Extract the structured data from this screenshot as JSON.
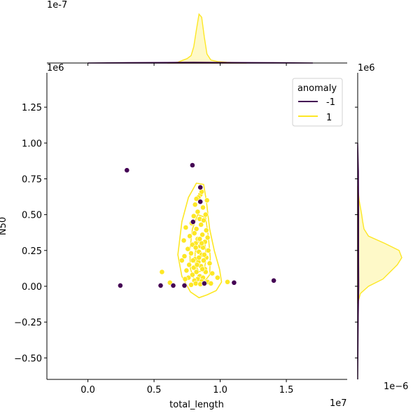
{
  "chart_data": {
    "type": "scatter",
    "title": "",
    "xlabel": "total_length",
    "ylabel": "N50",
    "x_offset_text": "1e7",
    "y_offset_text": "1e6",
    "top_marginal_offset_text": "1e-7",
    "right_marginal_offset_text": "1e6",
    "right_marginal_x_offset_text": "1e−6",
    "xlim": [
      -3.1,
      19.6
    ],
    "ylim": [
      -0.65,
      1.49
    ],
    "xticks": [
      0.0,
      0.5,
      1.0,
      1.5
    ],
    "xtick_labels": [
      "0.0",
      "0.5",
      "1.0",
      "1.5"
    ],
    "yticks": [
      -0.5,
      -0.25,
      0.0,
      0.25,
      0.5,
      0.75,
      1.0,
      1.25
    ],
    "ytick_labels": [
      "−0.50",
      "−0.25",
      "0.00",
      "0.25",
      "0.50",
      "0.75",
      "1.00",
      "1.25"
    ],
    "grid": false,
    "legend": {
      "title": "anomaly",
      "placement": "top-right",
      "entries": [
        {
          "label": "-1",
          "color": "#440154"
        },
        {
          "label": "1",
          "color": "#fde725"
        }
      ]
    },
    "series": [
      {
        "name": "-1",
        "color": "#440154",
        "points": [
          [
            2.95,
            0.81
          ],
          [
            7.9,
            0.845
          ],
          [
            8.5,
            0.69
          ],
          [
            8.5,
            0.59
          ],
          [
            7.95,
            0.45
          ],
          [
            2.45,
            0.005
          ],
          [
            5.5,
            0.005
          ],
          [
            6.45,
            0.005
          ],
          [
            7.3,
            0.005
          ],
          [
            8.8,
            0.02
          ],
          [
            11.05,
            0.025
          ],
          [
            14.05,
            0.04
          ]
        ]
      },
      {
        "name": "1",
        "color": "#fde725",
        "points": [
          [
            8.5,
            0.64
          ],
          [
            8.35,
            0.62
          ],
          [
            8.2,
            0.61
          ],
          [
            8.6,
            0.66
          ],
          [
            8.1,
            0.57
          ],
          [
            9.0,
            0.6
          ],
          [
            8.7,
            0.55
          ],
          [
            8.3,
            0.52
          ],
          [
            8.9,
            0.5
          ],
          [
            8.0,
            0.49
          ],
          [
            8.45,
            0.47
          ],
          [
            8.75,
            0.46
          ],
          [
            7.85,
            0.44
          ],
          [
            8.55,
            0.43
          ],
          [
            7.4,
            0.41
          ],
          [
            8.2,
            0.4
          ],
          [
            8.95,
            0.39
          ],
          [
            8.05,
            0.37
          ],
          [
            8.65,
            0.36
          ],
          [
            7.7,
            0.35
          ],
          [
            9.05,
            0.34
          ],
          [
            8.3,
            0.33
          ],
          [
            7.25,
            0.32
          ],
          [
            8.85,
            0.31
          ],
          [
            8.15,
            0.3
          ],
          [
            7.9,
            0.29
          ],
          [
            8.5,
            0.28
          ],
          [
            8.7,
            0.27
          ],
          [
            7.55,
            0.26
          ],
          [
            9.1,
            0.25
          ],
          [
            8.25,
            0.25
          ],
          [
            8.4,
            0.24
          ],
          [
            7.8,
            0.23
          ],
          [
            8.6,
            0.22
          ],
          [
            7.3,
            0.21
          ],
          [
            8.95,
            0.2
          ],
          [
            8.1,
            0.19
          ],
          [
            8.75,
            0.18
          ],
          [
            7.1,
            0.18
          ],
          [
            8.35,
            0.17
          ],
          [
            9.2,
            0.16
          ],
          [
            7.65,
            0.15
          ],
          [
            8.55,
            0.14
          ],
          [
            8.0,
            0.13
          ],
          [
            8.85,
            0.12
          ],
          [
            7.45,
            0.11
          ],
          [
            8.2,
            0.1
          ],
          [
            5.6,
            0.1
          ],
          [
            9.4,
            0.09
          ],
          [
            7.9,
            0.08
          ],
          [
            8.45,
            0.07
          ],
          [
            8.7,
            0.06
          ],
          [
            7.6,
            0.06
          ],
          [
            9.8,
            0.06
          ],
          [
            8.3,
            0.05
          ],
          [
            8.05,
            0.04
          ],
          [
            8.6,
            0.035
          ],
          [
            7.35,
            0.05
          ],
          [
            9.05,
            0.03
          ],
          [
            8.15,
            0.02
          ],
          [
            6.2,
            0.025
          ],
          [
            10.55,
            0.03
          ],
          [
            8.5,
            0.015
          ],
          [
            7.8,
            0.01
          ],
          [
            9.3,
            0.02
          ],
          [
            8.9,
            0.1
          ],
          [
            8.4,
            0.2
          ],
          [
            8.6,
            0.3
          ],
          [
            8.25,
            0.15
          ],
          [
            8.8,
            0.22
          ],
          [
            8.15,
            0.27
          ],
          [
            8.45,
            0.33
          ],
          [
            8.65,
            0.12
          ],
          [
            7.95,
            0.18
          ]
        ]
      }
    ],
    "kde_contours": [
      {
        "series": "1",
        "color": "#fde725",
        "level": "outer",
        "points": [
          [
            8.2,
            0.72
          ],
          [
            8.75,
            0.71
          ],
          [
            8.95,
            0.6
          ],
          [
            9.2,
            0.4
          ],
          [
            9.55,
            0.25
          ],
          [
            9.95,
            0.12
          ],
          [
            10.1,
            0.03
          ],
          [
            9.7,
            -0.03
          ],
          [
            9.0,
            -0.06
          ],
          [
            8.4,
            -0.08
          ],
          [
            7.75,
            -0.04
          ],
          [
            7.1,
            0.07
          ],
          [
            6.8,
            0.22
          ],
          [
            7.1,
            0.45
          ],
          [
            7.6,
            0.62
          ],
          [
            8.2,
            0.72
          ]
        ]
      },
      {
        "series": "1",
        "color": "#fde725",
        "level": "middle",
        "points": [
          [
            8.3,
            0.5
          ],
          [
            8.9,
            0.48
          ],
          [
            9.1,
            0.35
          ],
          [
            9.25,
            0.2
          ],
          [
            9.2,
            0.08
          ],
          [
            8.7,
            0.02
          ],
          [
            8.1,
            0.03
          ],
          [
            7.75,
            0.12
          ],
          [
            7.7,
            0.25
          ],
          [
            7.9,
            0.4
          ],
          [
            8.3,
            0.5
          ]
        ]
      },
      {
        "series": "1",
        "color": "#fde725",
        "level": "inner",
        "points": [
          [
            8.4,
            0.32
          ],
          [
            8.85,
            0.3
          ],
          [
            8.95,
            0.2
          ],
          [
            8.8,
            0.12
          ],
          [
            8.4,
            0.1
          ],
          [
            8.1,
            0.15
          ],
          [
            8.1,
            0.25
          ],
          [
            8.4,
            0.32
          ]
        ]
      }
    ],
    "top_marginal": {
      "xlim": [
        -3.1,
        19.6
      ],
      "density_max": 0.07,
      "series": [
        {
          "name": "1",
          "color": "#fde725",
          "x": [
            6.0,
            6.8,
            7.2,
            7.5,
            7.8,
            8.0,
            8.2,
            8.4,
            8.6,
            8.8,
            9.0,
            9.3,
            9.8,
            10.5,
            12.0
          ],
          "density": [
            0.0,
            0.001,
            0.004,
            0.006,
            0.01,
            0.022,
            0.045,
            0.066,
            0.062,
            0.035,
            0.012,
            0.004,
            0.002,
            0.001,
            0.0
          ]
        },
        {
          "name": "-1",
          "color": "#440154",
          "x": [
            0.0,
            3.0,
            6.0,
            8.0,
            10.0,
            14.0,
            17.0
          ],
          "density": [
            0.0,
            0.0005,
            0.0008,
            0.001,
            0.0008,
            0.0005,
            0.0
          ]
        }
      ]
    },
    "right_marginal": {
      "ylim": [
        -0.65,
        1.49
      ],
      "density_max": 2.8,
      "series": [
        {
          "name": "1",
          "color": "#fde725",
          "y": [
            -0.12,
            -0.05,
            0.0,
            0.05,
            0.1,
            0.15,
            0.2,
            0.25,
            0.3,
            0.35,
            0.4,
            0.45,
            0.5,
            0.55,
            0.6,
            0.7
          ],
          "density": [
            0.0,
            0.15,
            0.6,
            1.4,
            1.8,
            2.2,
            2.45,
            2.3,
            1.5,
            0.6,
            0.35,
            0.28,
            0.22,
            0.15,
            0.08,
            0.0
          ]
        },
        {
          "name": "-1",
          "color": "#440154",
          "y": [
            -0.65,
            -0.2,
            0.0,
            0.2,
            0.5,
            0.8,
            1.0
          ],
          "density": [
            0.0,
            0.03,
            0.06,
            0.05,
            0.05,
            0.04,
            0.0
          ]
        }
      ]
    }
  }
}
